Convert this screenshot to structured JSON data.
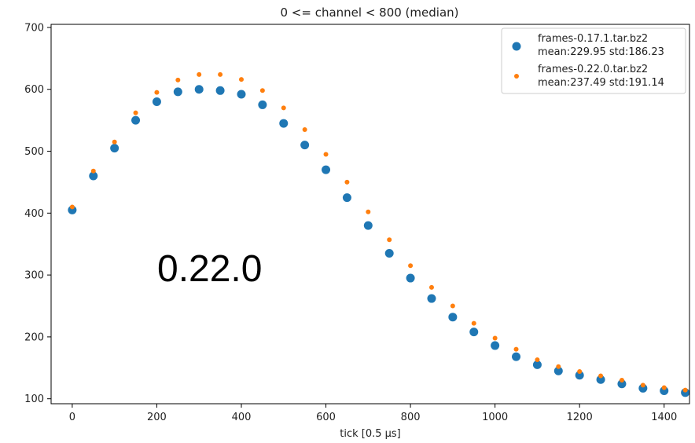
{
  "chart_data": {
    "type": "scatter",
    "title": "0 <= channel < 800 (median)",
    "xlabel": "tick [0.5 μs]",
    "ylabel": "",
    "xlim": [
      -50,
      1460
    ],
    "ylim": [
      92,
      705
    ],
    "x_ticks": [
      0,
      200,
      400,
      600,
      800,
      1000,
      1200,
      1400
    ],
    "y_ticks": [
      100,
      200,
      300,
      400,
      500,
      600,
      700
    ],
    "grid": false,
    "legend_position": "top-right",
    "annotation": "0.22.0",
    "series": [
      {
        "name": "frames-0.17.1.tar.bz2",
        "stats": "mean:229.95 std:186.23",
        "color": "#1f77b4",
        "marker": "large-dot",
        "x": [
          0,
          50,
          100,
          150,
          200,
          250,
          300,
          350,
          400,
          450,
          500,
          550,
          600,
          650,
          700,
          750,
          800,
          850,
          900,
          950,
          1000,
          1050,
          1100,
          1150,
          1200,
          1250,
          1300,
          1350,
          1400,
          1450
        ],
        "y": [
          405,
          460,
          505,
          550,
          580,
          596,
          600,
          598,
          592,
          575,
          545,
          510,
          470,
          425,
          380,
          335,
          295,
          262,
          232,
          208,
          186,
          168,
          155,
          145,
          138,
          131,
          124,
          117,
          113,
          110
        ]
      },
      {
        "name": "frames-0.22.0.tar.bz2",
        "stats": "mean:237.49 std:191.14",
        "color": "#ff7f0e",
        "marker": "small-dot",
        "x": [
          0,
          50,
          100,
          150,
          200,
          250,
          300,
          350,
          400,
          450,
          500,
          550,
          600,
          650,
          700,
          750,
          800,
          850,
          900,
          950,
          1000,
          1050,
          1100,
          1150,
          1200,
          1250,
          1300,
          1350,
          1400,
          1450
        ],
        "y": [
          410,
          468,
          515,
          562,
          595,
          615,
          624,
          624,
          616,
          598,
          570,
          535,
          495,
          450,
          402,
          357,
          315,
          280,
          250,
          222,
          198,
          180,
          163,
          152,
          144,
          137,
          130,
          122,
          118,
          114
        ]
      }
    ]
  }
}
